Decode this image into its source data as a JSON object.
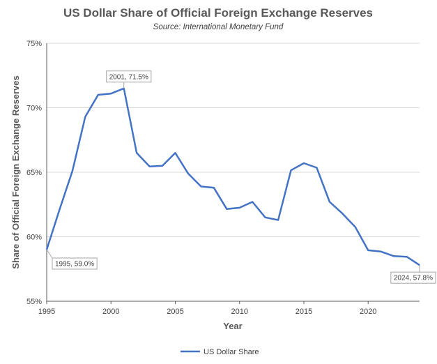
{
  "chart_data": {
    "type": "line",
    "title": "US Dollar Share of Official Foreign Exchange Reserves",
    "subtitle": "Source: International Monetary Fund",
    "xlabel": "Year",
    "ylabel": "Share of Official Foreign Exchange Reserves",
    "xlim": [
      1995,
      2024
    ],
    "ylim": [
      55,
      75
    ],
    "x_ticks": [
      "1995",
      "2000",
      "2005",
      "2010",
      "2015",
      "2020"
    ],
    "y_ticks": [
      "55%",
      "60%",
      "65%",
      "70%",
      "75%"
    ],
    "grid": true,
    "legend_position": "bottom",
    "series": [
      {
        "name": "US Dollar Share",
        "color": "#4472c4",
        "x": [
          1995,
          1996,
          1997,
          1998,
          1999,
          2000,
          2001,
          2002,
          2003,
          2004,
          2005,
          2006,
          2007,
          2008,
          2009,
          2010,
          2011,
          2012,
          2013,
          2014,
          2015,
          2016,
          2017,
          2018,
          2019,
          2020,
          2021,
          2022,
          2023,
          2024
        ],
        "values": [
          59.0,
          62.1,
          65.1,
          69.3,
          71.0,
          71.1,
          71.5,
          66.5,
          65.45,
          65.5,
          66.5,
          64.9,
          63.9,
          63.8,
          62.15,
          62.25,
          62.7,
          61.5,
          61.3,
          65.15,
          65.7,
          65.35,
          62.7,
          61.8,
          60.75,
          58.95,
          58.85,
          58.5,
          58.45,
          57.8
        ]
      }
    ],
    "annotations": [
      {
        "label": "1995, 59.0%",
        "x": 1995,
        "y": 59.0
      },
      {
        "label": "2001, 71.5%",
        "x": 2001,
        "y": 71.5
      },
      {
        "label": "2024, 57.8%",
        "x": 2024,
        "y": 57.8
      }
    ]
  }
}
